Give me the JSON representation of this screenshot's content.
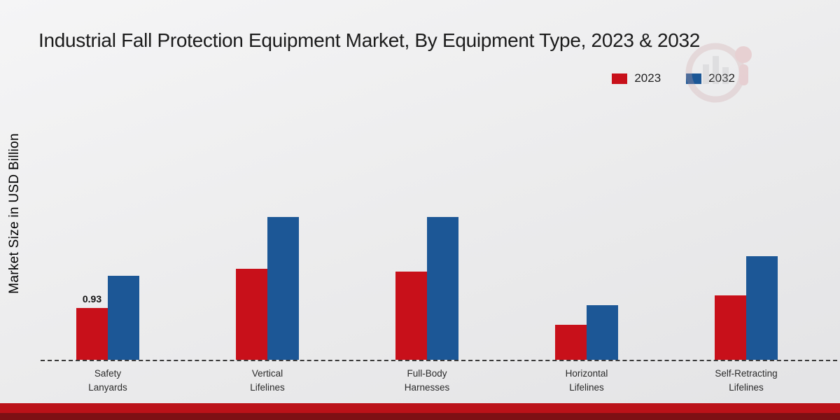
{
  "chart_data": {
    "type": "bar",
    "title": "Industrial Fall Protection Equipment Market, By Equipment Type, 2023 & 2032",
    "ylabel": "Market Size in USD Billion",
    "xlabel": "",
    "categories": [
      "Safety Lanyards",
      "Vertical Lifelines",
      "Full-Body Harnesses",
      "Horizontal Lifelines",
      "Self-Retracting Lifelines"
    ],
    "series": [
      {
        "name": "2023",
        "color": "#c8101a",
        "values": [
          0.93,
          1.62,
          1.58,
          0.62,
          1.15
        ]
      },
      {
        "name": "2032",
        "color": "#1c5796",
        "values": [
          1.5,
          2.55,
          2.55,
          0.97,
          1.85
        ]
      }
    ],
    "ylim": [
      0,
      3
    ],
    "grid": false,
    "legend_position": "top-right",
    "baseline_style": "dashed",
    "bar_label": {
      "series_index": 0,
      "category_index": 0,
      "text": "0.93"
    }
  },
  "colors": {
    "strip_top": "#bb1219",
    "strip_bottom": "#7d1014",
    "background": "#ededee"
  }
}
